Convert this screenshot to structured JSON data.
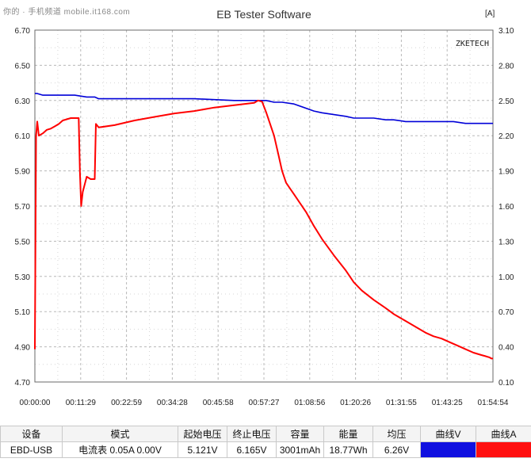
{
  "watermark": "你的 · 手机频道 mobile.it168.com",
  "summary": {
    "headers": [
      "设备",
      "模式",
      "起始电压",
      "终止电压",
      "容量",
      "能量",
      "均压",
      "曲线V",
      "曲线A"
    ],
    "row": {
      "device": "EBD-USB",
      "mode": "电流表  0.05A  0.00V",
      "start_voltage": "5.121V",
      "end_voltage": "6.165V",
      "capacity": "3001mAh",
      "energy": "18.77Wh",
      "avg_voltage": "6.26V"
    }
  },
  "chart_data": {
    "type": "line",
    "title": "EB Tester Software",
    "brand_label": "ZKETECH",
    "left_axis_unit": "",
    "right_axis_unit": "[A]",
    "x_ticks": [
      "00:00:00",
      "00:11:29",
      "00:22:59",
      "00:34:28",
      "00:45:58",
      "00:57:27",
      "01:08:56",
      "01:20:26",
      "01:31:55",
      "01:43:25",
      "01:54:54"
    ],
    "x_range_minutes": [
      0,
      114.9
    ],
    "y_left": {
      "range": [
        4.7,
        6.7
      ],
      "ticks": [
        "6.70",
        "6.50",
        "6.30",
        "6.10",
        "5.90",
        "5.70",
        "5.50",
        "5.30",
        "5.10",
        "4.90",
        "4.70"
      ]
    },
    "y_right": {
      "range": [
        0.1,
        3.1
      ],
      "ticks": [
        "3.10",
        "2.80",
        "2.50",
        "2.20",
        "1.90",
        "1.60",
        "1.30",
        "1.00",
        "0.70",
        "0.40",
        "0.10"
      ]
    },
    "grid": true,
    "series": [
      {
        "name": "曲线V",
        "axis": "left",
        "color": "#0000d8",
        "x": [
          0,
          0.5,
          2,
          5,
          8,
          10,
          13,
          15,
          16,
          18,
          19,
          20,
          25,
          30,
          40,
          50,
          55,
          57,
          58,
          60,
          62,
          65,
          70,
          72,
          75,
          78,
          80,
          85,
          88,
          90,
          93,
          95,
          98,
          100,
          103,
          105,
          108,
          110,
          112,
          114,
          114.9
        ],
        "y": [
          6.34,
          6.34,
          6.33,
          6.33,
          6.33,
          6.33,
          6.32,
          6.32,
          6.31,
          6.31,
          6.31,
          6.31,
          6.31,
          6.31,
          6.31,
          6.3,
          6.3,
          6.3,
          6.3,
          6.29,
          6.29,
          6.28,
          6.24,
          6.23,
          6.22,
          6.21,
          6.2,
          6.2,
          6.19,
          6.19,
          6.18,
          6.18,
          6.18,
          6.18,
          6.18,
          6.18,
          6.17,
          6.17,
          6.17,
          6.17,
          6.17
        ]
      },
      {
        "name": "曲线A",
        "axis": "right",
        "color": "#ff0000",
        "x": [
          0,
          0.3,
          0.6,
          1,
          2,
          3,
          4,
          5,
          6,
          7,
          8,
          9,
          10,
          11,
          11.3,
          11.6,
          12,
          13,
          14,
          15,
          15.3,
          16,
          20,
          25,
          30,
          35,
          40,
          45,
          50,
          55,
          56,
          57,
          58,
          60,
          61,
          62,
          63,
          64,
          65,
          66,
          68,
          70,
          72,
          75,
          78,
          80,
          82,
          85,
          88,
          90,
          92,
          94,
          96,
          98,
          100,
          102,
          104,
          106,
          108,
          110,
          112,
          113,
          114,
          114.5,
          114.9
        ],
        "y": [
          0.38,
          2.2,
          2.32,
          2.2,
          2.22,
          2.25,
          2.26,
          2.28,
          2.3,
          2.33,
          2.34,
          2.35,
          2.35,
          2.35,
          1.9,
          1.6,
          1.72,
          1.85,
          1.83,
          1.83,
          2.3,
          2.27,
          2.29,
          2.33,
          2.36,
          2.39,
          2.41,
          2.44,
          2.46,
          2.48,
          2.5,
          2.49,
          2.4,
          2.2,
          2.05,
          1.9,
          1.8,
          1.75,
          1.7,
          1.65,
          1.55,
          1.43,
          1.32,
          1.18,
          1.05,
          0.95,
          0.88,
          0.8,
          0.73,
          0.68,
          0.64,
          0.6,
          0.56,
          0.52,
          0.49,
          0.47,
          0.44,
          0.41,
          0.38,
          0.35,
          0.33,
          0.32,
          0.31,
          0.3,
          0.3
        ]
      }
    ]
  }
}
